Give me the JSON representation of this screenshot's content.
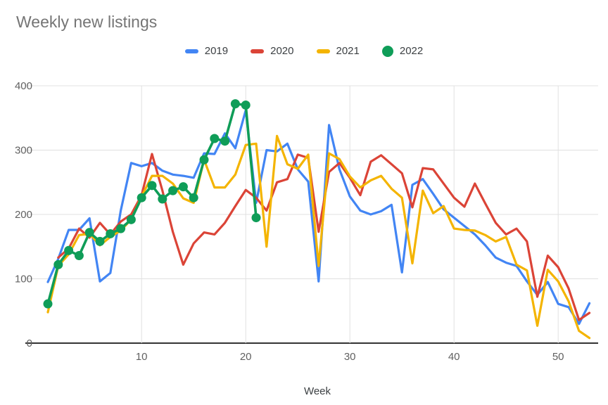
{
  "title": "Weekly new listings",
  "legend": {
    "items": [
      "2019",
      "2020",
      "2021",
      "2022"
    ]
  },
  "axes": {
    "x_label": "Week",
    "y_tick_labels": [
      "0",
      "100",
      "200",
      "300",
      "400"
    ],
    "x_tick_labels": [
      "10",
      "20",
      "30",
      "40",
      "50"
    ]
  },
  "palette": {
    "blue": "#4285F4",
    "red": "#DB4437",
    "yellow": "#F4B400",
    "green": "#0F9D58",
    "gridline": "#e0e0e0",
    "axis_line": "#333333",
    "title_text": "#757575",
    "tick_text": "#616161",
    "label_text": "#3c4043",
    "background": "#ffffff"
  },
  "chart_data": {
    "type": "line",
    "title": "Weekly new listings",
    "xlabel": "Week",
    "ylabel": "",
    "xlim": [
      1,
      53
    ],
    "ylim": [
      0,
      400
    ],
    "x_ticks": [
      10,
      20,
      30,
      40,
      50
    ],
    "y_ticks": [
      0,
      100,
      200,
      300,
      400
    ],
    "grid": true,
    "legend_position": "top",
    "x": [
      1,
      2,
      3,
      4,
      5,
      6,
      7,
      8,
      9,
      10,
      11,
      12,
      13,
      14,
      15,
      16,
      17,
      18,
      19,
      20,
      21,
      22,
      23,
      24,
      25,
      26,
      27,
      28,
      29,
      30,
      31,
      32,
      33,
      34,
      35,
      36,
      37,
      38,
      39,
      40,
      41,
      42,
      43,
      44,
      45,
      46,
      47,
      48,
      49,
      50,
      51,
      52,
      53
    ],
    "series": [
      {
        "name": "2019",
        "color": "#4285F4",
        "marker": "none",
        "values": [
          95,
          131,
          176,
          176,
          194,
          96,
          109,
          206,
          280,
          275,
          280,
          268,
          262,
          260,
          257,
          295,
          294,
          326,
          303,
          362,
          218,
          300,
          298,
          310,
          270,
          251,
          96,
          339,
          270,
          228,
          206,
          200,
          205,
          215,
          110,
          246,
          255,
          232,
          208,
          195,
          182,
          169,
          152,
          133,
          125,
          120,
          96,
          75,
          95,
          61,
          56,
          30,
          62
        ]
      },
      {
        "name": "2020",
        "color": "#DB4437",
        "marker": "none",
        "values": [
          null,
          133,
          147,
          178,
          164,
          187,
          169,
          189,
          200,
          230,
          294,
          237,
          173,
          122,
          155,
          172,
          169,
          187,
          213,
          238,
          226,
          206,
          250,
          255,
          293,
          288,
          173,
          266,
          280,
          257,
          230,
          282,
          292,
          278,
          264,
          211,
          272,
          270,
          248,
          226,
          212,
          248,
          217,
          187,
          169,
          178,
          158,
          72,
          136,
          118,
          85,
          36,
          47
        ]
      },
      {
        "name": "2021",
        "color": "#F4B400",
        "marker": "none",
        "values": [
          48,
          120,
          138,
          168,
          170,
          152,
          165,
          175,
          192,
          228,
          260,
          260,
          248,
          225,
          218,
          285,
          242,
          242,
          262,
          308,
          310,
          150,
          322,
          278,
          271,
          293,
          120,
          295,
          286,
          259,
          242,
          253,
          260,
          240,
          226,
          124,
          237,
          202,
          213,
          178,
          176,
          175,
          168,
          158,
          165,
          122,
          113,
          27,
          114,
          96,
          65,
          19,
          8
        ]
      },
      {
        "name": "2022",
        "color": "#0F9D58",
        "marker": "circle",
        "point_radius": 6.5,
        "values": [
          61,
          122,
          144,
          136,
          172,
          158,
          170,
          178,
          192,
          226,
          245,
          224,
          237,
          243,
          226,
          285,
          318,
          314,
          372,
          370,
          195,
          null,
          null,
          null,
          null,
          null,
          null,
          null,
          null,
          null,
          null,
          null,
          null,
          null,
          null,
          null,
          null,
          null,
          null,
          null,
          null,
          null,
          null,
          null,
          null,
          null,
          null,
          null,
          null,
          null,
          null,
          null,
          null
        ]
      }
    ]
  }
}
